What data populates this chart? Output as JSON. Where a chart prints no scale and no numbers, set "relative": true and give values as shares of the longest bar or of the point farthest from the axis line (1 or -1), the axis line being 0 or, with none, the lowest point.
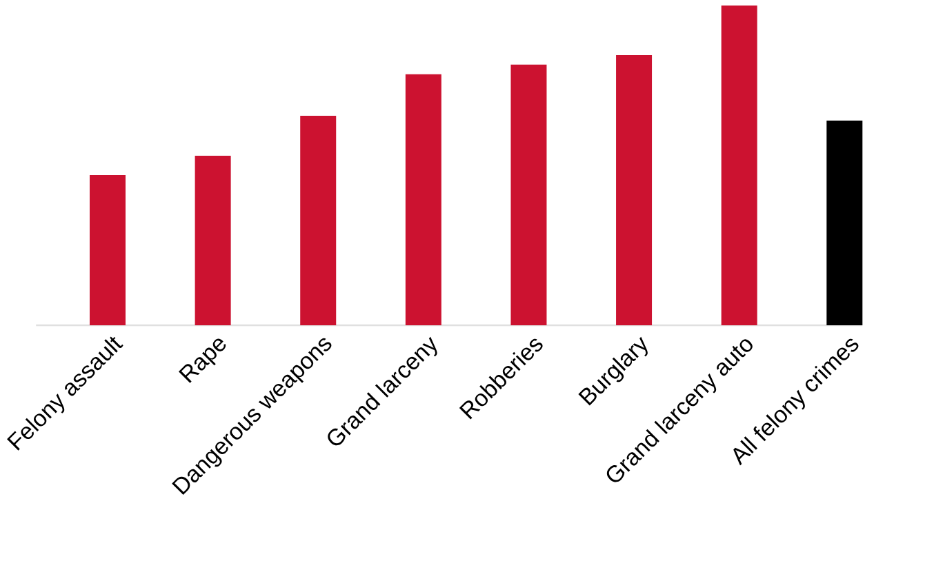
{
  "chart_data": {
    "type": "bar",
    "relative": true,
    "tick_labels": "x",
    "categories": [
      "Felony assault",
      "Rape",
      "Dangerous weapons",
      "Grand larceny",
      "Robberies",
      "Burglary",
      "Grand larceny auto",
      "All felony crimes"
    ],
    "values": [
      0.47,
      0.53,
      0.655,
      0.785,
      0.815,
      0.845,
      1,
      0.64
    ],
    "colors": [
      "#cc1230",
      "#cc1230",
      "#cc1230",
      "#cc1230",
      "#cc1230",
      "#cc1230",
      "#cc1230",
      "#000000"
    ]
  }
}
